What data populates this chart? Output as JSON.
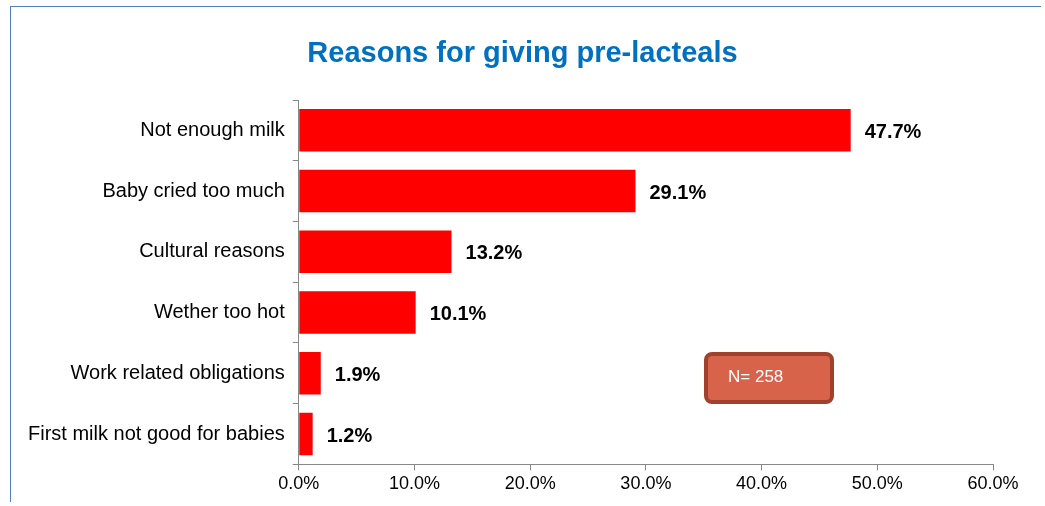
{
  "chart_data": {
    "type": "bar",
    "orientation": "horizontal",
    "title": "Reasons for giving pre-lacteals",
    "categories": [
      "Not enough milk",
      "Baby cried too much",
      "Cultural reasons",
      "Wether too hot",
      "Work related obligations",
      "First milk not good for babies"
    ],
    "values": [
      47.7,
      29.1,
      13.2,
      10.1,
      1.9,
      1.2
    ],
    "value_labels": [
      "47.7%",
      "29.1%",
      "13.2%",
      "10.1%",
      "1.9%",
      "1.2%"
    ],
    "color": "#ff0000",
    "xlim": [
      0,
      60
    ],
    "xticks": [
      {
        "value": 0,
        "label": "0.0%"
      },
      {
        "value": 10,
        "label": "10.0%"
      },
      {
        "value": 20,
        "label": "20.0%"
      },
      {
        "value": 30,
        "label": "30.0%"
      },
      {
        "value": 40,
        "label": "40.0%"
      },
      {
        "value": 50,
        "label": "50.0%"
      },
      {
        "value": 60,
        "label": "60.0%"
      }
    ],
    "grid": false,
    "legend": false,
    "annotations": [
      "N= 258"
    ]
  }
}
